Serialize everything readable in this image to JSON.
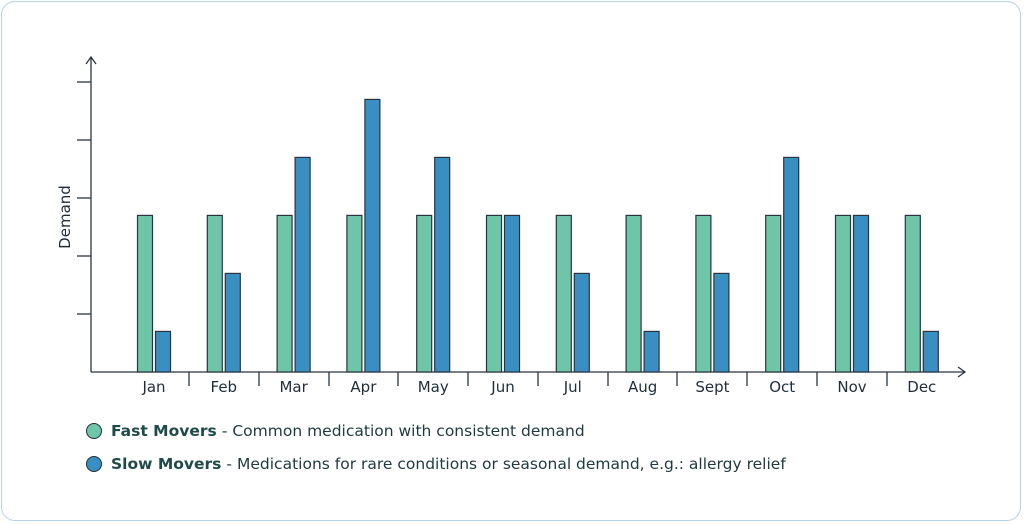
{
  "chart_data": {
    "type": "bar",
    "title": "",
    "xlabel": "",
    "ylabel": "Demand",
    "ylim": [
      0,
      5
    ],
    "grid": false,
    "legend_position": "bottom-left",
    "categories": [
      "Jan",
      "Feb",
      "Mar",
      "Apr",
      "May",
      "Jun",
      "Jul",
      "Aug",
      "Sept",
      "Oct",
      "Nov",
      "Dec"
    ],
    "series": [
      {
        "name": "Fast Movers",
        "description": "Common medication with consistent demand",
        "color": "#6fc5a8",
        "values": [
          2.7,
          2.7,
          2.7,
          2.7,
          2.7,
          2.7,
          2.7,
          2.7,
          2.7,
          2.7,
          2.7,
          2.7
        ]
      },
      {
        "name": "Slow Movers",
        "description": "Medications for rare conditions or seasonal demand, e.g.: allergy relief",
        "color": "#3a8fc2",
        "values": [
          0.7,
          1.7,
          3.7,
          4.7,
          3.7,
          2.7,
          1.7,
          0.7,
          1.7,
          3.7,
          2.7,
          0.7
        ]
      }
    ]
  },
  "legend": {
    "separator": "-"
  }
}
